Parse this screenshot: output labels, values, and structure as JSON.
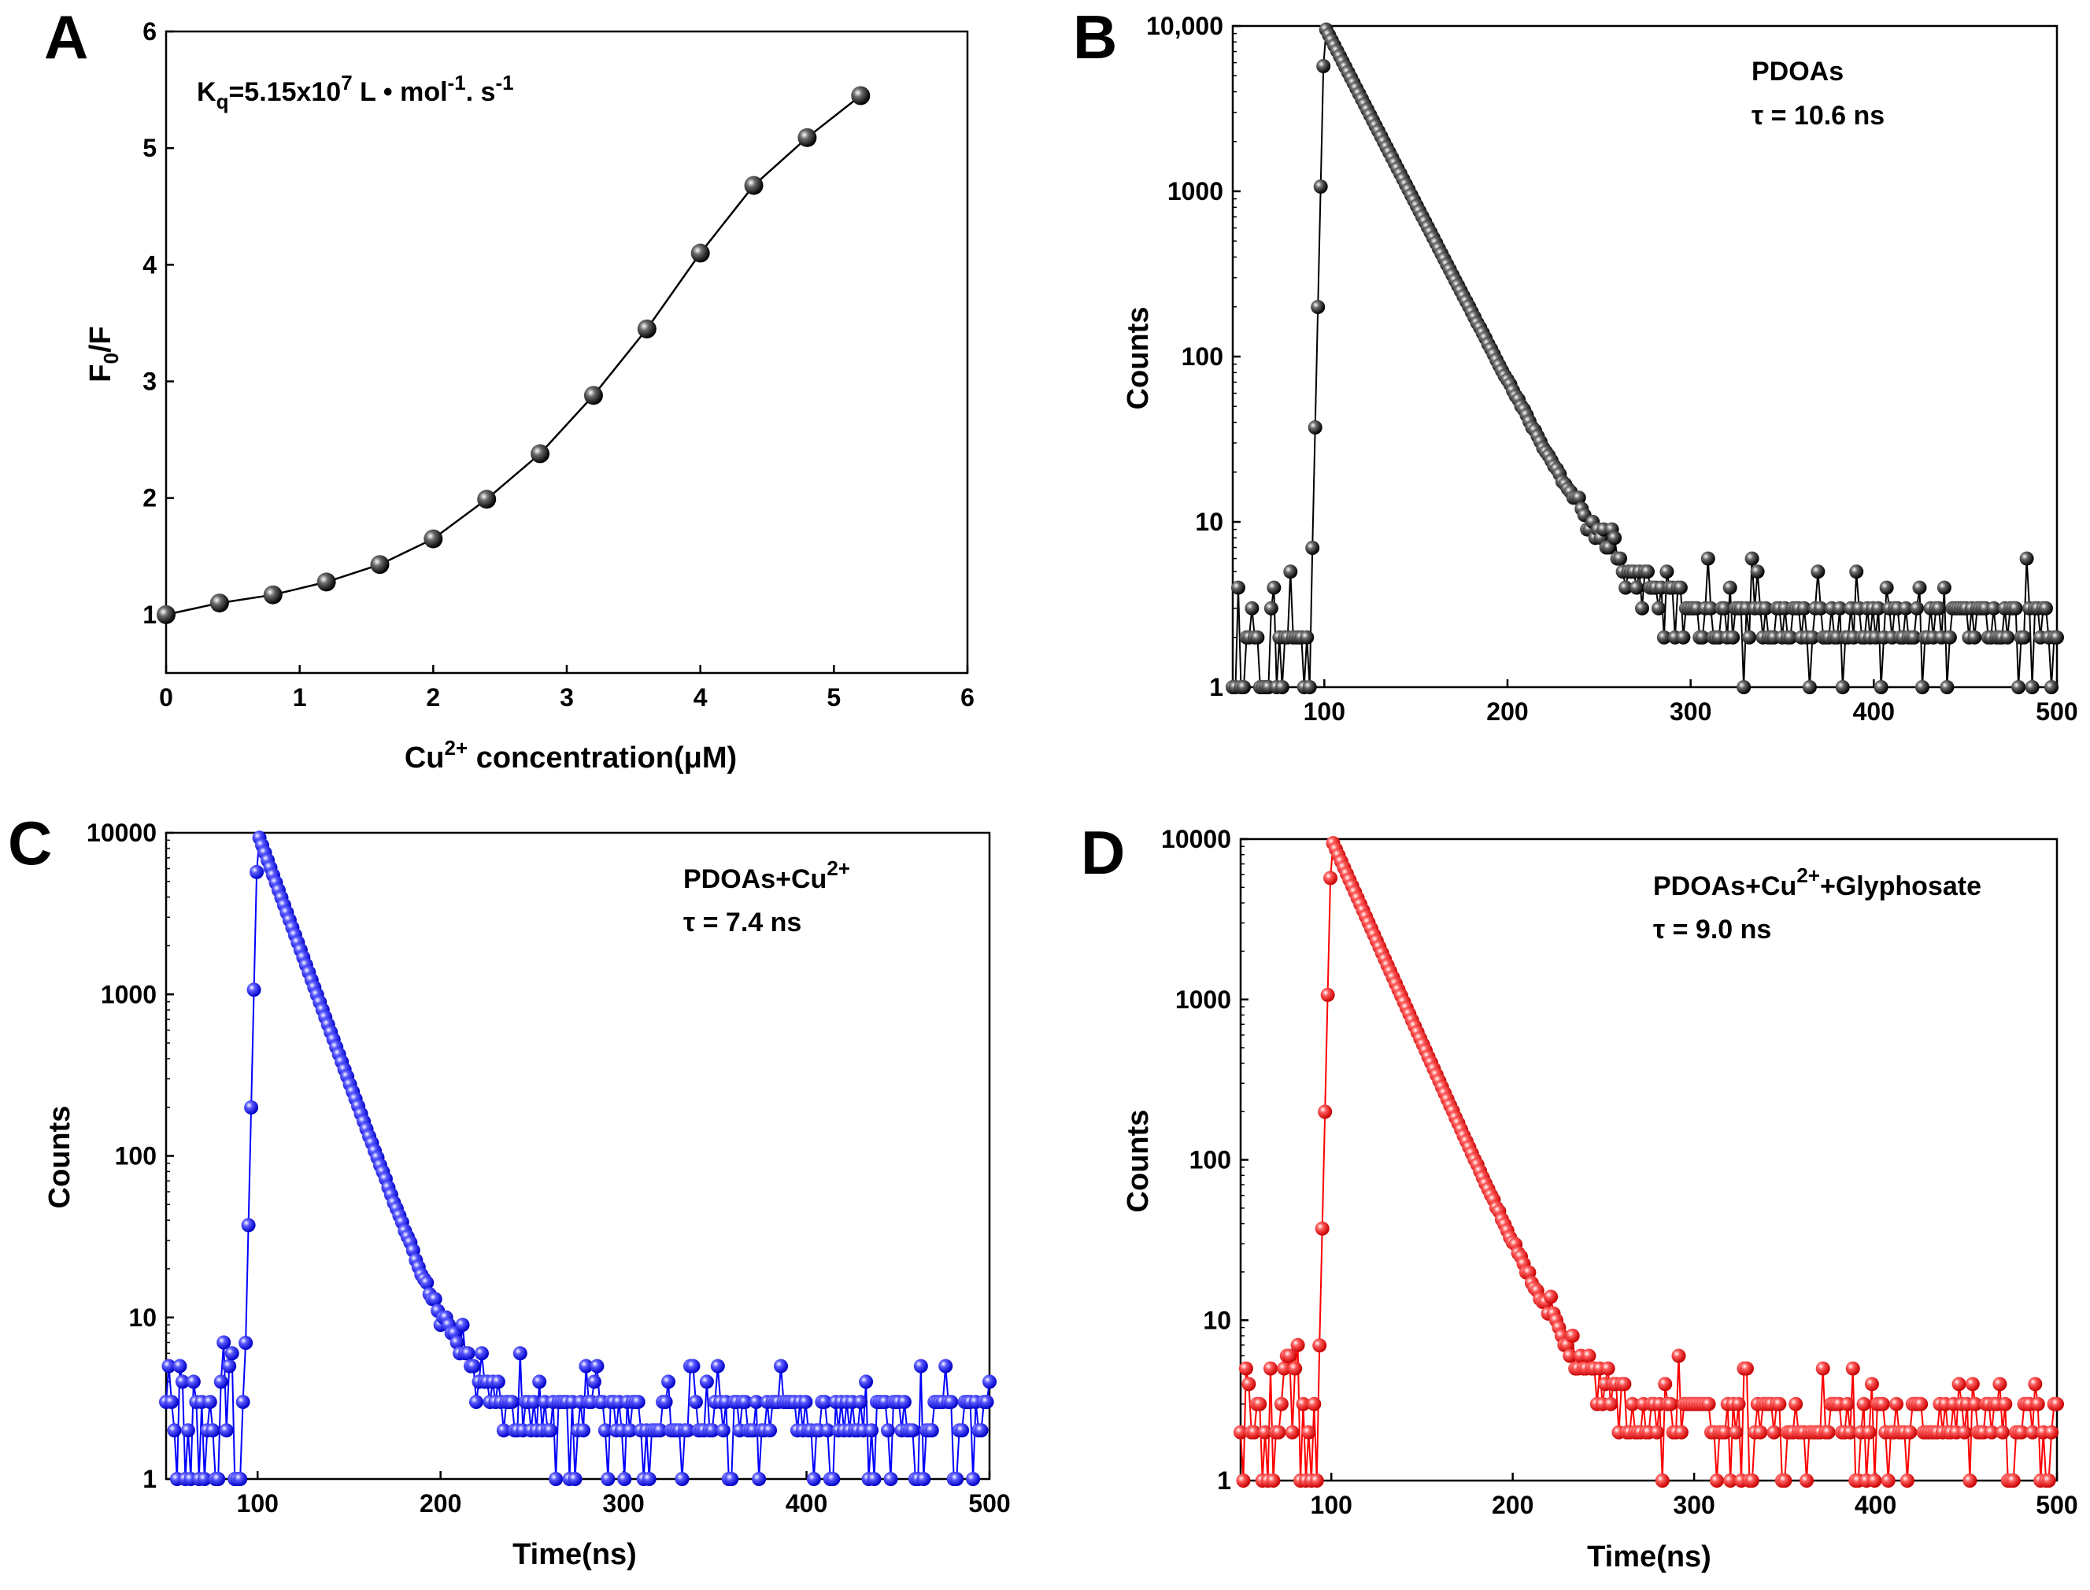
{
  "figure_colors": {
    "A": "#000000",
    "B": "#000000",
    "C": "#0000ff",
    "D": "#ff0000"
  },
  "chart_data": [
    {
      "panel": "A",
      "type": "line",
      "subtype": "line+marker",
      "title": "",
      "annotation": {
        "base": "K",
        "sub": "q",
        "text": "=5.15x10",
        "exp": "7",
        "unit1": " L • mol",
        "unit1_exp": "-1",
        "unit2": ". s",
        "unit2_exp": "-1"
      },
      "xlabel": {
        "pre": "Cu",
        "sup": "2+",
        "post": " concentration(μM)"
      },
      "ylabel": {
        "base": "F",
        "sub": "0",
        "post": "/F"
      },
      "xlim": [
        0,
        6
      ],
      "ylim": [
        0.5,
        6
      ],
      "x_ticks": [
        0,
        1,
        2,
        3,
        4,
        5,
        6
      ],
      "y_ticks": [
        1,
        2,
        3,
        4,
        5,
        6
      ],
      "x": [
        0,
        0.4,
        0.8,
        1.2,
        1.6,
        2.0,
        2.4,
        2.8,
        3.2,
        3.6,
        4.0,
        4.4,
        4.8,
        5.2
      ],
      "y": [
        1.0,
        1.1,
        1.17,
        1.28,
        1.43,
        1.65,
        1.99,
        2.38,
        2.88,
        3.45,
        4.1,
        4.68,
        5.09,
        5.45
      ],
      "color": "#000000"
    },
    {
      "panel": "B",
      "type": "line",
      "subtype": "semilog decay",
      "annotation_lines": [
        "PDOAs",
        "τ = 10.6 ns"
      ],
      "xlabel": "",
      "ylabel": "Counts",
      "xlim": [
        50,
        500
      ],
      "ylim": [
        1,
        10000
      ],
      "yscale": "log",
      "x_ticks": [
        100,
        200,
        300,
        400,
        500
      ],
      "y_ticks": [
        1,
        10,
        100,
        1000,
        10000
      ],
      "y_tick_labels": [
        "1",
        "10",
        "100",
        "1000",
        "10,000"
      ],
      "peak_x": 100,
      "peak_y": 10000,
      "lifetime_ns": 10.6,
      "noise_floor": [
        1,
        6
      ],
      "color": "#000000"
    },
    {
      "panel": "C",
      "type": "line",
      "subtype": "semilog decay",
      "annotation_lines": [
        {
          "pre": "PDOAs+Cu",
          "sup": "2+",
          "post": ""
        },
        "τ = 7.4 ns"
      ],
      "xlabel": "Time(ns)",
      "ylabel": "Counts",
      "xlim": [
        50,
        500
      ],
      "ylim": [
        1,
        10000
      ],
      "yscale": "log",
      "x_ticks": [
        100,
        200,
        300,
        400,
        500
      ],
      "y_ticks": [
        1,
        10,
        100,
        1000,
        10000
      ],
      "y_tick_labels": [
        "1",
        "10",
        "100",
        "1000",
        "10000"
      ],
      "peak_x": 100,
      "peak_y": 10000,
      "lifetime_ns": 7.4,
      "noise_floor": [
        1,
        8
      ],
      "color": "#0000ff"
    },
    {
      "panel": "D",
      "type": "line",
      "subtype": "semilog decay",
      "annotation_lines": [
        {
          "pre": "PDOAs+Cu",
          "sup": "2+",
          "post": "+Glyphosate"
        },
        "τ = 9.0 ns"
      ],
      "xlabel": "Time(ns)",
      "ylabel": "Counts",
      "xlim": [
        50,
        500
      ],
      "ylim": [
        1,
        10000
      ],
      "yscale": "log",
      "x_ticks": [
        100,
        200,
        300,
        400,
        500
      ],
      "y_ticks": [
        1,
        10,
        100,
        1000,
        10000
      ],
      "y_tick_labels": [
        "1",
        "10",
        "100",
        "1000",
        "10000"
      ],
      "peak_x": 100,
      "peak_y": 10000,
      "lifetime_ns": 9.0,
      "noise_floor": [
        1,
        8
      ],
      "color": "#ff0000"
    }
  ]
}
